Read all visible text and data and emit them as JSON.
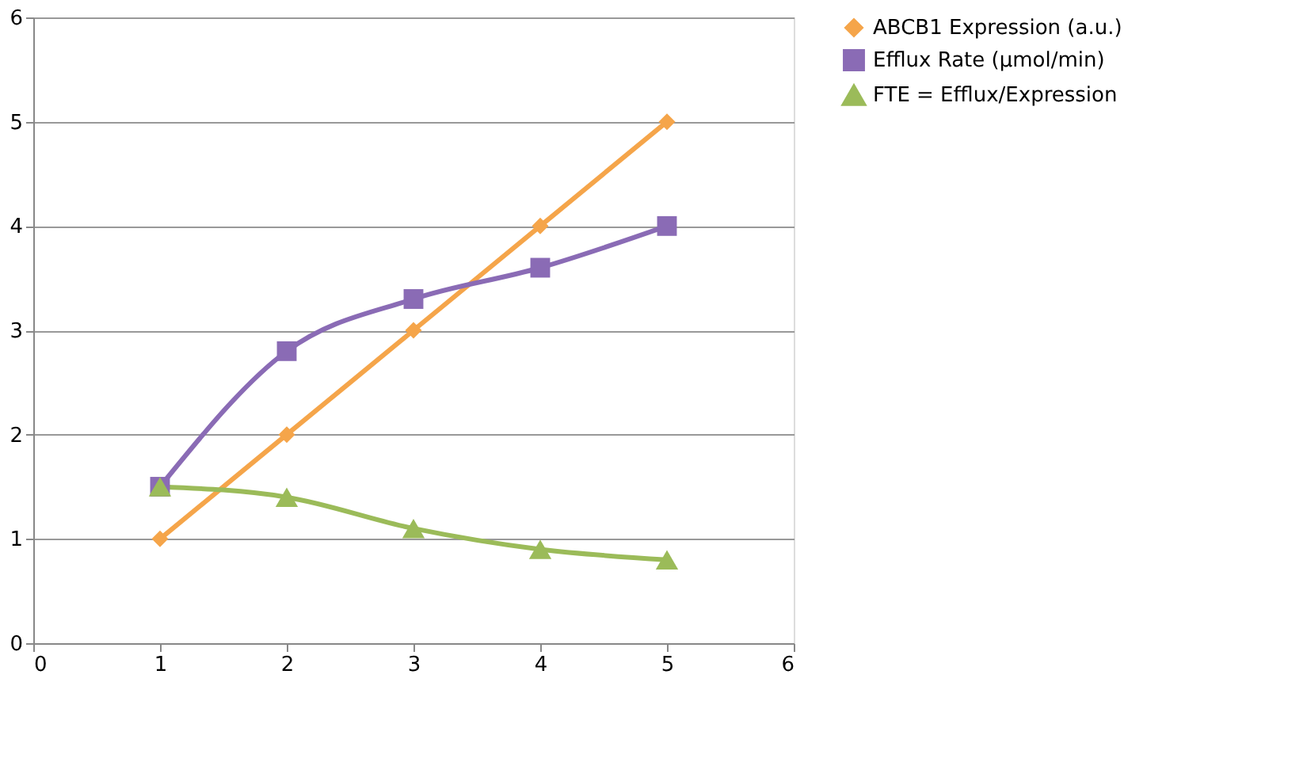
{
  "chart_data": {
    "type": "line",
    "x": [
      1,
      2,
      3,
      4,
      5
    ],
    "series": [
      {
        "name": "ABCB1 Expression (a.u.)",
        "color": "#f5a54a",
        "marker": "diamond",
        "values": [
          1,
          2,
          3,
          4,
          5
        ]
      },
      {
        "name": "Efflux Rate (µmol/min)",
        "color": "#8a6bb5",
        "marker": "square",
        "values": [
          1.5,
          2.8,
          3.3,
          3.6,
          4.0
        ]
      },
      {
        "name": "FTE = Efflux/Expression",
        "color": "#9bbb59",
        "marker": "triangle",
        "values": [
          1.5,
          1.4,
          1.1,
          0.9,
          0.8
        ]
      }
    ],
    "xlim": [
      0,
      6
    ],
    "xticks": [
      0,
      1,
      2,
      3,
      4,
      5,
      6
    ],
    "ylim": [
      0,
      6
    ],
    "yticks": [
      0,
      1,
      2,
      3,
      4,
      5,
      6
    ],
    "grid": "y",
    "legend": "right",
    "line_style": "solid"
  }
}
